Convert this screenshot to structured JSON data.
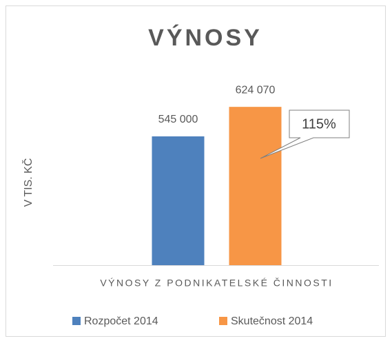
{
  "chart_data": {
    "type": "bar",
    "title": "VÝNOSY",
    "y_label": "V TIS. KČ",
    "categories": [
      "VÝNOSY Z PODNIKATELSKÉ ČINNOSTI"
    ],
    "series": [
      {
        "name": "Rozpočet 2014",
        "color": "#4e81bd",
        "values": [
          545000
        ],
        "value_labels": [
          "545 000"
        ]
      },
      {
        "name": "Skutečnost 2014",
        "color": "#f79646",
        "values": [
          624070
        ],
        "value_labels": [
          "624 070"
        ]
      }
    ],
    "ylim": [
      200000,
      700000
    ],
    "annotation": "115%",
    "legend": "bottom"
  }
}
